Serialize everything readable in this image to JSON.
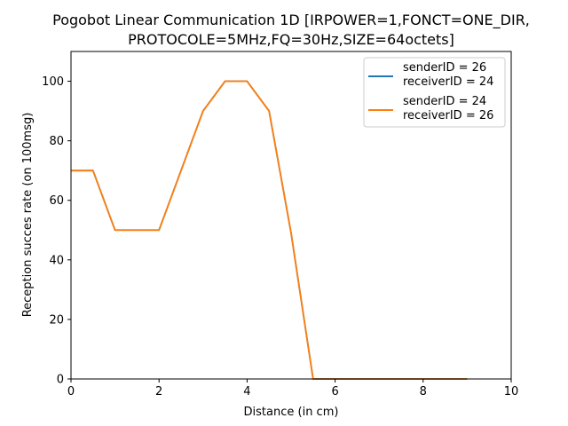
{
  "chart_data": {
    "type": "line",
    "title_lines": [
      "Pogobot Linear Communication 1D [IRPOWER=1,FONCT=ONE_DIR,",
      "PROTOCOLE=5MHz,FQ=30Hz,SIZE=64octets]"
    ],
    "xlabel": "Distance (in cm)",
    "ylabel": "Reception succes rate (on 100msg)",
    "xlim": [
      0,
      10
    ],
    "ylim": [
      0,
      110
    ],
    "xticks": [
      0,
      2,
      4,
      6,
      8,
      10
    ],
    "yticks": [
      0,
      20,
      40,
      60,
      80,
      100
    ],
    "grid": false,
    "legend_position": "top-right",
    "x": [
      0,
      0.5,
      1,
      1.5,
      2,
      2.5,
      3,
      3.5,
      4,
      4.5,
      5,
      5.5,
      6,
      6.5,
      7,
      7.5,
      8,
      8.5,
      9
    ],
    "series": [
      {
        "name_lines": [
          "senderID = 26",
          "receiverID = 24"
        ],
        "color": "#1f77b4",
        "values": [
          70,
          70,
          50,
          50,
          50,
          70,
          90,
          100,
          100,
          90,
          49,
          0,
          0,
          0,
          0,
          0,
          0,
          0,
          0
        ]
      },
      {
        "name_lines": [
          "senderID = 24",
          "receiverID = 26"
        ],
        "color": "#ff7f0e",
        "values": [
          70,
          70,
          50,
          50,
          50,
          70,
          90,
          100,
          100,
          90,
          49,
          0,
          0,
          0,
          0,
          0,
          0,
          0,
          0
        ]
      }
    ]
  }
}
